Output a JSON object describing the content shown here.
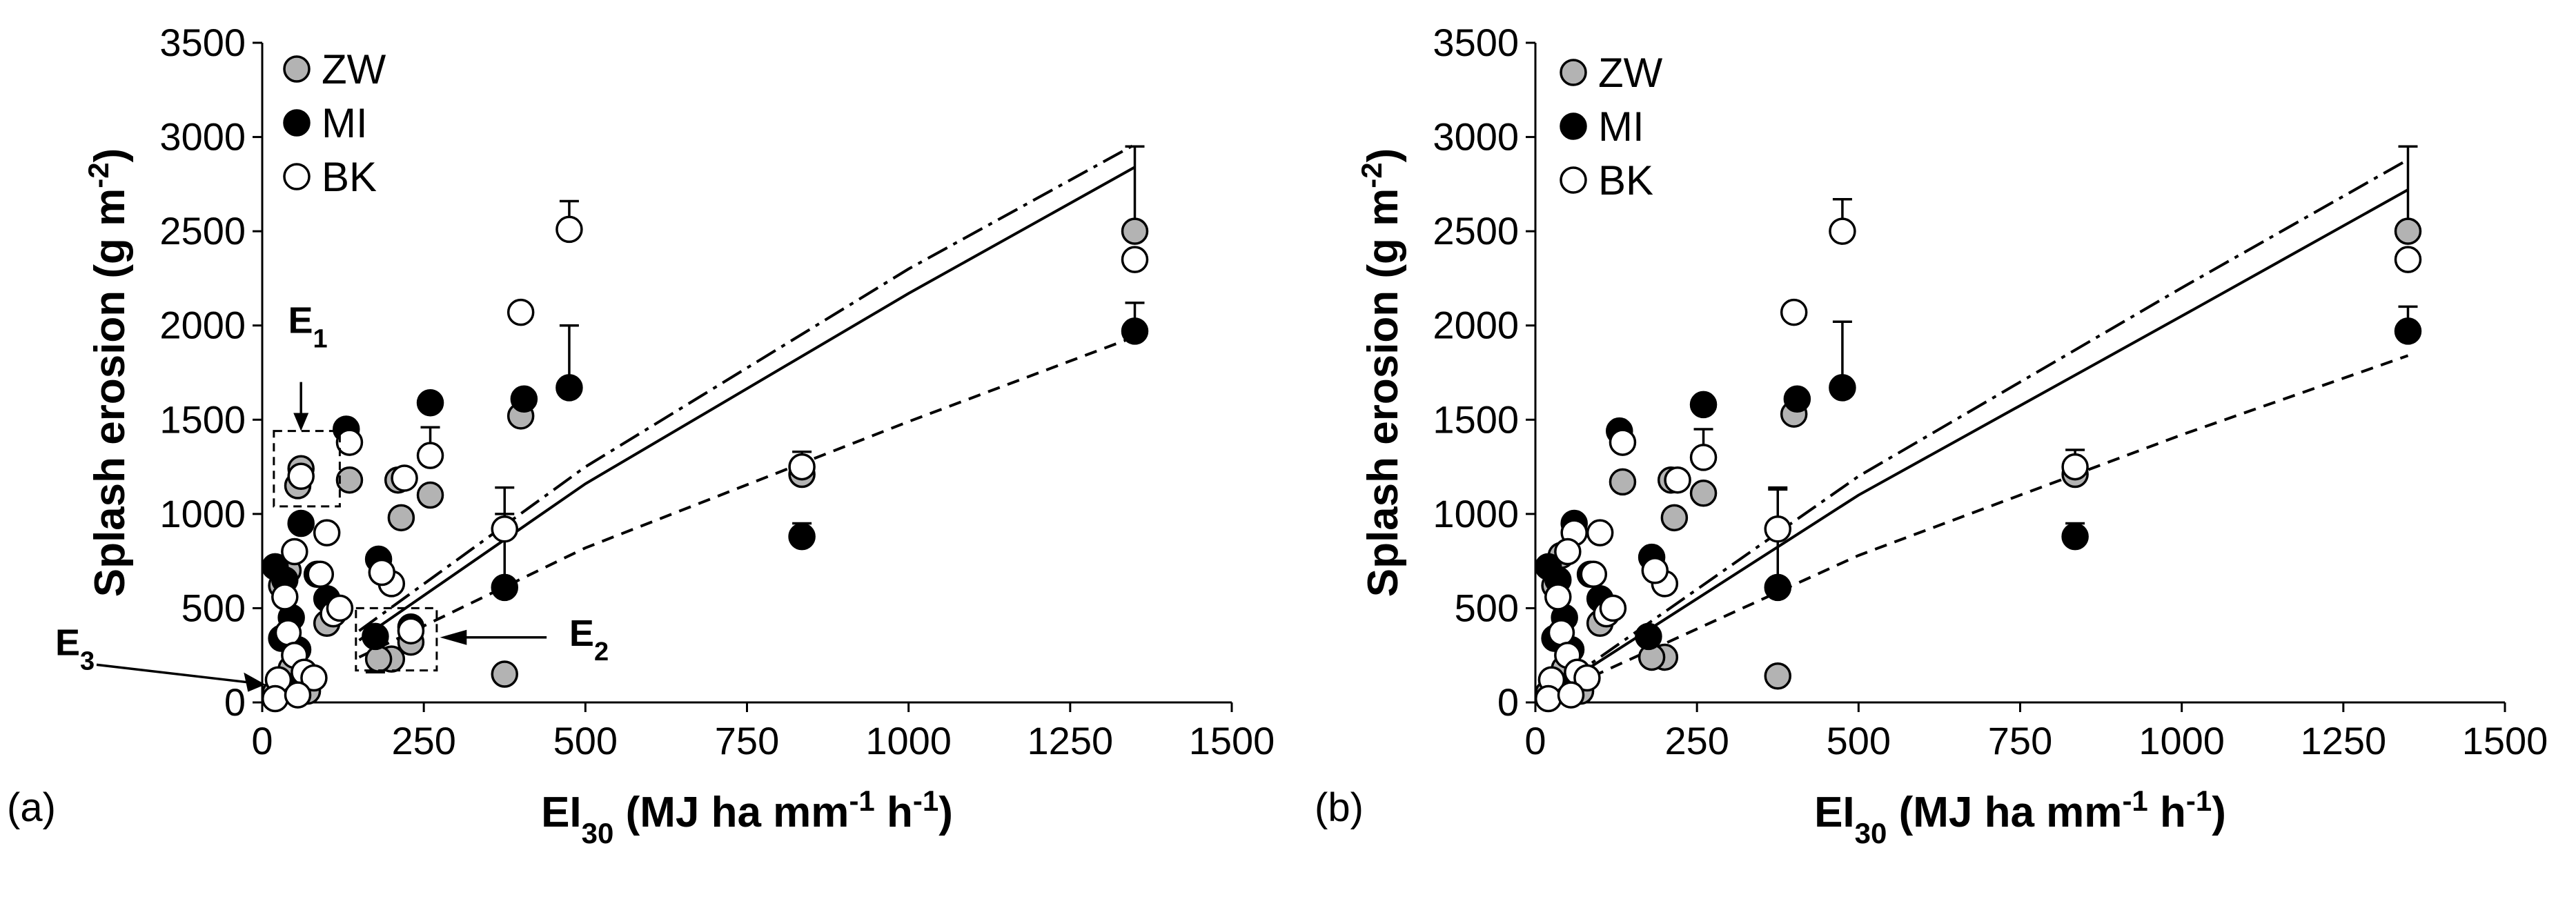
{
  "chart_data": [
    {
      "type": "scatter",
      "panel_label": "(a)",
      "xlabel": {
        "main": "EI",
        "sub": "30",
        "rest": " (MJ ha mm",
        "sup1": "-1",
        "mid": " h",
        "sup2": "-1",
        "end": ")"
      },
      "ylabel": {
        "main": "Splash erosion (g m",
        "sup": "-2",
        "end": ")"
      },
      "xlim": [
        0,
        1500
      ],
      "ylim": [
        0,
        3500
      ],
      "xticks": [
        "0",
        "250",
        "500",
        "750",
        "1000",
        "1250",
        "1500"
      ],
      "yticks": [
        "0",
        "500",
        "1000",
        "1500",
        "2000",
        "2500",
        "3000",
        "3500"
      ],
      "legend": [
        {
          "name": "ZW",
          "color": "#b3b3b3"
        },
        {
          "name": "MI",
          "color": "#000000"
        },
        {
          "name": "BK",
          "color": "#ffffff"
        }
      ],
      "annotations": [
        {
          "label": "E",
          "sub": "1"
        },
        {
          "label": "E",
          "sub": "2"
        },
        {
          "label": "E",
          "sub": "3"
        }
      ],
      "lines": [
        {
          "style": "dash-dot",
          "x": [
            150,
            500,
            1000,
            1350
          ],
          "y": [
            380,
            1250,
            2300,
            2960
          ]
        },
        {
          "style": "solid",
          "x": [
            150,
            500,
            1000,
            1350
          ],
          "y": [
            330,
            1160,
            2170,
            2840
          ]
        },
        {
          "style": "dashed",
          "x": [
            150,
            500,
            1000,
            1350
          ],
          "y": [
            240,
            820,
            1490,
            1940
          ]
        }
      ],
      "series": [
        {
          "name": "ZW",
          "points": [
            [
              1350,
              2500
            ],
            [
              835,
              1210
            ],
            [
              400,
              1520
            ],
            [
              375,
              150
            ],
            [
              260,
              1100
            ],
            [
              230,
              320
            ],
            [
              215,
              980
            ],
            [
              200,
              230
            ],
            [
              180,
              230
            ],
            [
              135,
              1180
            ],
            [
              55,
              1150
            ],
            [
              60,
              1240
            ],
            [
              30,
              620
            ],
            [
              45,
              180
            ],
            [
              70,
              60
            ],
            [
              20,
              50
            ],
            [
              40,
              700
            ],
            [
              100,
              420
            ],
            [
              210,
              1180
            ]
          ],
          "err": [
            [
              1350,
              2500,
              2950
            ]
          ]
        },
        {
          "name": "MI",
          "points": [
            [
              1350,
              1970
            ],
            [
              835,
              880
            ],
            [
              475,
              1670
            ],
            [
              405,
              1610
            ],
            [
              375,
              610
            ],
            [
              260,
              1590
            ],
            [
              230,
              400
            ],
            [
              180,
              760
            ],
            [
              175,
              350
            ],
            [
              130,
              1450
            ],
            [
              60,
              950
            ],
            [
              20,
              720
            ],
            [
              35,
              650
            ],
            [
              45,
              450
            ],
            [
              85,
              680
            ],
            [
              100,
              550
            ],
            [
              55,
              280
            ],
            [
              60,
              110
            ],
            [
              30,
              340
            ]
          ],
          "err": [
            [
              1350,
              1970,
              2120
            ],
            [
              475,
              1670,
              2000
            ],
            [
              375,
              610,
              1140
            ],
            [
              835,
              880,
              950
            ],
            [
              175,
              350,
              160
            ],
            [
              260,
              1590,
              1590
            ]
          ]
        },
        {
          "name": "BK",
          "points": [
            [
              1350,
              2350
            ],
            [
              835,
              1250
            ],
            [
              475,
              2510
            ],
            [
              400,
              2070
            ],
            [
              375,
              920
            ],
            [
              260,
              1310
            ],
            [
              220,
              1190
            ],
            [
              230,
              380
            ],
            [
              200,
              630
            ],
            [
              185,
              690
            ],
            [
              135,
              1380
            ],
            [
              100,
              900
            ],
            [
              90,
              680
            ],
            [
              60,
              1200
            ],
            [
              50,
              800
            ],
            [
              35,
              560
            ],
            [
              40,
              370
            ],
            [
              50,
              250
            ],
            [
              25,
              120
            ],
            [
              65,
              160
            ],
            [
              80,
              130
            ],
            [
              110,
              470
            ],
            [
              120,
              500
            ],
            [
              20,
              20
            ],
            [
              55,
              40
            ]
          ],
          "err": [
            [
              475,
              2510,
              2660
            ],
            [
              260,
              1310,
              1460
            ],
            [
              835,
              1250,
              1330
            ],
            [
              375,
              920,
              1000
            ]
          ]
        }
      ]
    },
    {
      "type": "scatter",
      "panel_label": "(b)",
      "xlabel": {
        "main": "EI",
        "sub": "30",
        "rest": " (MJ ha mm",
        "sup1": "-1",
        "mid": " h",
        "sup2": "-1",
        "end": ")"
      },
      "ylabel": {
        "main": "Splash erosion (g m",
        "sup": "-2",
        "end": ")"
      },
      "xlim": [
        0,
        1500
      ],
      "ylim": [
        0,
        3500
      ],
      "xticks": [
        "0",
        "250",
        "500",
        "750",
        "1000",
        "1250",
        "1500"
      ],
      "yticks": [
        "0",
        "500",
        "1000",
        "1500",
        "2000",
        "2500",
        "3000",
        "3500"
      ],
      "legend": [
        {
          "name": "ZW",
          "color": "#b3b3b3"
        },
        {
          "name": "MI",
          "color": "#000000"
        },
        {
          "name": "BK",
          "color": "#ffffff"
        }
      ],
      "annotations": [],
      "lines": [
        {
          "style": "dash-dot",
          "x": [
            0,
            500,
            1000,
            1350
          ],
          "y": [
            0,
            1200,
            2200,
            2880
          ]
        },
        {
          "style": "solid",
          "x": [
            0,
            500,
            1000,
            1350
          ],
          "y": [
            0,
            1100,
            2050,
            2720
          ]
        },
        {
          "style": "dashed",
          "x": [
            0,
            500,
            1000,
            1350
          ],
          "y": [
            0,
            780,
            1420,
            1840
          ]
        }
      ],
      "series": [
        {
          "name": "ZW",
          "points": [
            [
              1350,
              2500
            ],
            [
              835,
              1210
            ],
            [
              400,
              1530
            ],
            [
              375,
              140
            ],
            [
              260,
              1110
            ],
            [
              215,
              980
            ],
            [
              200,
              240
            ],
            [
              180,
              240
            ],
            [
              135,
              1170
            ],
            [
              40,
              780
            ],
            [
              30,
              620
            ],
            [
              45,
              180
            ],
            [
              70,
              60
            ],
            [
              20,
              50
            ],
            [
              100,
              420
            ],
            [
              210,
              1180
            ]
          ],
          "err": [
            [
              1350,
              2500,
              2950
            ]
          ]
        },
        {
          "name": "MI",
          "points": [
            [
              1350,
              1970
            ],
            [
              835,
              880
            ],
            [
              475,
              1670
            ],
            [
              405,
              1610
            ],
            [
              375,
              610
            ],
            [
              260,
              1580
            ],
            [
              180,
              770
            ],
            [
              175,
              350
            ],
            [
              130,
              1440
            ],
            [
              60,
              950
            ],
            [
              20,
              720
            ],
            [
              35,
              650
            ],
            [
              45,
              450
            ],
            [
              85,
              680
            ],
            [
              100,
              550
            ],
            [
              55,
              280
            ],
            [
              60,
              110
            ],
            [
              30,
              340
            ]
          ],
          "err": [
            [
              1350,
              1970,
              2100
            ],
            [
              475,
              1670,
              2020
            ],
            [
              375,
              610,
              1140
            ],
            [
              835,
              880,
              950
            ]
          ]
        },
        {
          "name": "BK",
          "points": [
            [
              1350,
              2350
            ],
            [
              835,
              1250
            ],
            [
              475,
              2500
            ],
            [
              400,
              2070
            ],
            [
              375,
              920
            ],
            [
              260,
              1300
            ],
            [
              220,
              1180
            ],
            [
              200,
              630
            ],
            [
              185,
              700
            ],
            [
              135,
              1380
            ],
            [
              100,
              900
            ],
            [
              90,
              680
            ],
            [
              60,
              900
            ],
            [
              50,
              800
            ],
            [
              35,
              560
            ],
            [
              40,
              370
            ],
            [
              50,
              250
            ],
            [
              25,
              120
            ],
            [
              65,
              160
            ],
            [
              80,
              130
            ],
            [
              110,
              470
            ],
            [
              120,
              500
            ],
            [
              20,
              20
            ],
            [
              55,
              40
            ]
          ],
          "err": [
            [
              475,
              2500,
              2670
            ],
            [
              260,
              1300,
              1450
            ],
            [
              835,
              1250,
              1340
            ],
            [
              375,
              920,
              1130
            ]
          ]
        }
      ]
    }
  ]
}
